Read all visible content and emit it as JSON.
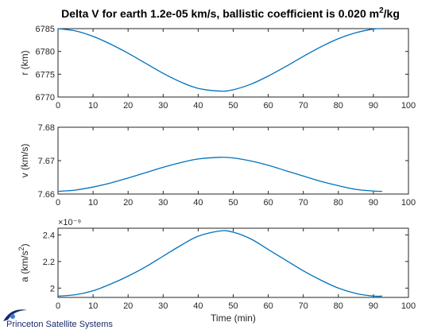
{
  "figure": {
    "title_main": "Delta V for earth 1.2e-05 km/s, ballistic coefficient is 0.020 m",
    "title_sup": "2",
    "title_tail": "/kg",
    "logo_text": "Princeton Satellite Systems",
    "line_color": "#0072bd",
    "logo_color": "#1a2a6c"
  },
  "chart_data": [
    {
      "type": "line",
      "title": "Delta V for earth 1.2e-05 km/s, ballistic coefficient is 0.020 m^2/kg",
      "xlabel": "",
      "ylabel": "r (km)",
      "xlim": [
        0,
        100
      ],
      "ylim": [
        6770,
        6785
      ],
      "xticks": [
        "0",
        "10",
        "20",
        "30",
        "40",
        "50",
        "60",
        "70",
        "80",
        "90",
        "100"
      ],
      "yticks": [
        "6770",
        "6775",
        "6780",
        "6785"
      ],
      "grid": false,
      "x": [
        0,
        5,
        10,
        15,
        20,
        25,
        30,
        35,
        40,
        46.3,
        50,
        55,
        60,
        65,
        70,
        75,
        80,
        85,
        90,
        92.5
      ],
      "y": [
        6785,
        6784.5,
        6783.3,
        6781.6,
        6779.6,
        6777.4,
        6775.2,
        6773.3,
        6771.9,
        6771.3,
        6771.6,
        6772.8,
        6774.6,
        6776.7,
        6778.9,
        6781.0,
        6782.8,
        6784.1,
        6784.9,
        6785
      ]
    },
    {
      "type": "line",
      "xlabel": "",
      "ylabel": "v (km/s)",
      "xlim": [
        0,
        100
      ],
      "ylim": [
        7.66,
        7.68
      ],
      "xticks": [
        "0",
        "10",
        "20",
        "30",
        "40",
        "50",
        "60",
        "70",
        "80",
        "90",
        "100"
      ],
      "yticks": [
        "7.66",
        "7.67",
        "7.68"
      ],
      "grid": false,
      "x": [
        0,
        5,
        10,
        15,
        20,
        25,
        30,
        35,
        40,
        46.3,
        50,
        55,
        60,
        65,
        70,
        75,
        80,
        85,
        90,
        92.5
      ],
      "y": [
        7.6608,
        7.6612,
        7.6621,
        7.6633,
        7.6648,
        7.6664,
        7.668,
        7.6694,
        7.6705,
        7.671,
        7.6708,
        7.6699,
        7.6686,
        7.667,
        7.6654,
        7.6638,
        7.6625,
        7.6614,
        7.6609,
        7.6608
      ]
    },
    {
      "type": "line",
      "xlabel": "Time (min)",
      "ylabel": "a (km/s^2)",
      "y_exponent": "×10⁻⁹",
      "xlim": [
        0,
        100
      ],
      "ylim": [
        1.93,
        2.45
      ],
      "xticks": [
        "0",
        "10",
        "20",
        "30",
        "40",
        "50",
        "60",
        "70",
        "80",
        "90",
        "100"
      ],
      "yticks": [
        "2",
        "2.2",
        "2.4"
      ],
      "grid": false,
      "x": [
        0,
        5,
        10,
        15,
        20,
        25,
        30,
        35,
        40,
        46.3,
        50,
        55,
        60,
        65,
        70,
        75,
        80,
        85,
        90,
        92.5
      ],
      "y": [
        1.94,
        1.95,
        1.98,
        2.03,
        2.09,
        2.16,
        2.24,
        2.32,
        2.39,
        2.43,
        2.42,
        2.37,
        2.29,
        2.21,
        2.13,
        2.06,
        2.0,
        1.96,
        1.94,
        1.94
      ]
    }
  ]
}
